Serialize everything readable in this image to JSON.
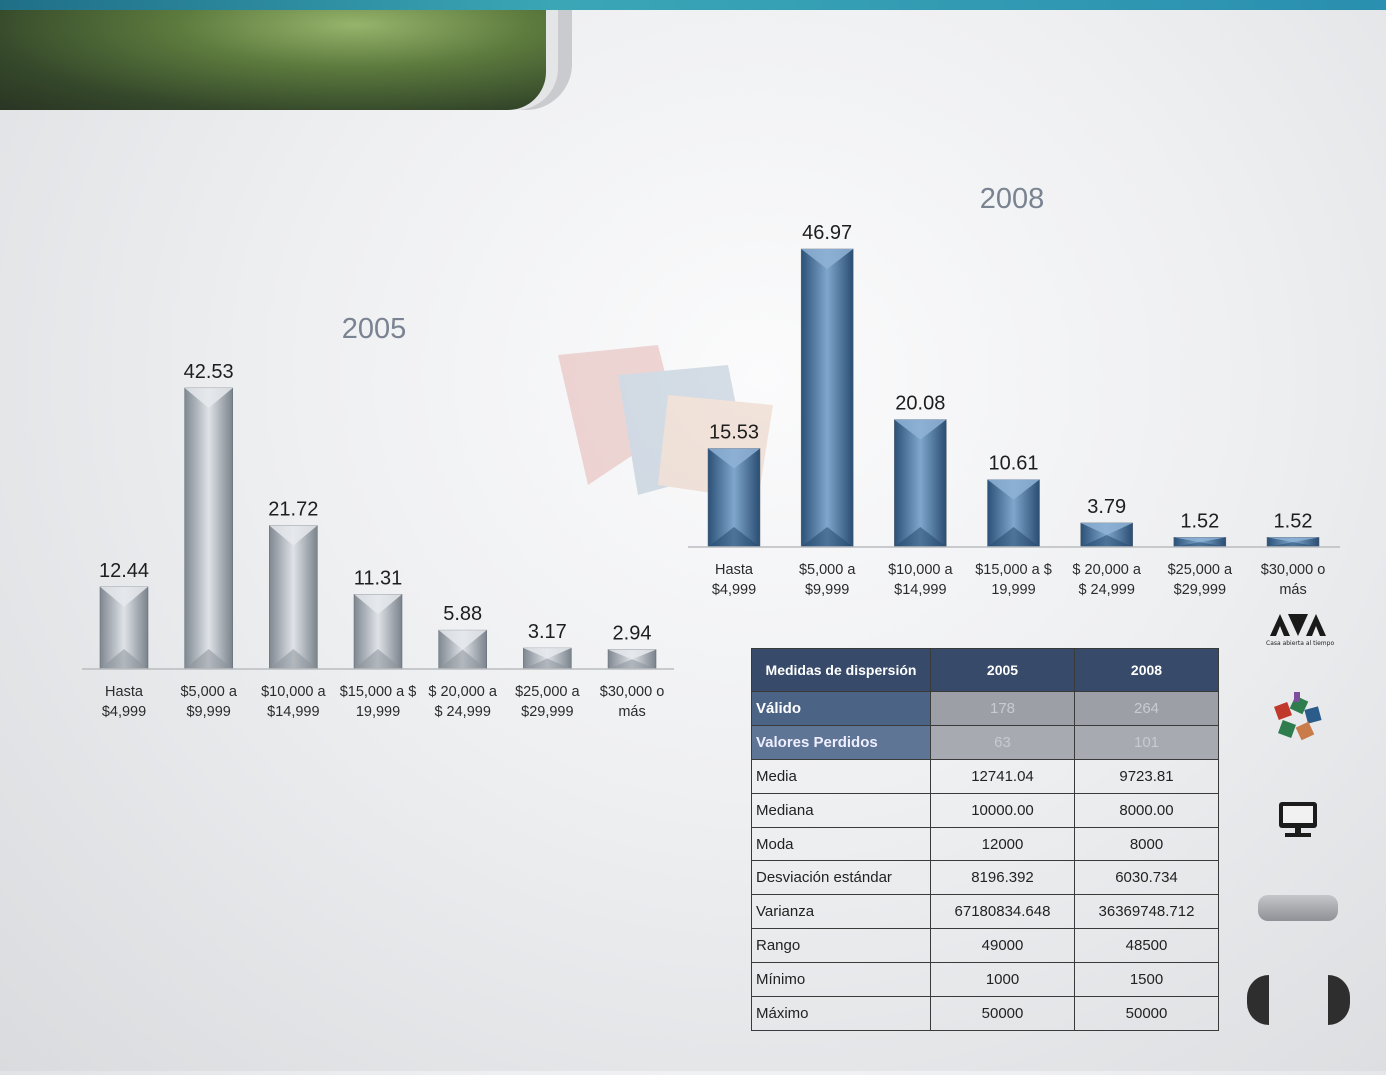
{
  "chart_data": [
    {
      "type": "bar",
      "title": "2005",
      "categories": [
        "Hasta\n$4,999",
        "$5,000 a\n$9,999",
        "$10,000 a\n$14,999",
        "$15,000 a $\n19,999",
        "$ 20,000 a\n$ 24,999",
        "$25,000 a\n$29,999",
        "$30,000 o\nmás"
      ],
      "values": [
        12.44,
        42.53,
        21.72,
        11.31,
        5.88,
        3.17,
        2.94
      ],
      "value_labels": [
        "12.44",
        "42.53",
        "21.72",
        "11.31",
        "5.88",
        "3.17",
        "2.94"
      ],
      "color": "#b3bac3",
      "ylim": [
        0,
        45
      ],
      "grid": false,
      "legend": "none"
    },
    {
      "type": "bar",
      "title": "2008",
      "categories": [
        "Hasta\n$4,999",
        "$5,000 a\n$9,999",
        "$10,000 a\n$14,999",
        "$15,000 a $\n19,999",
        "$ 20,000 a\n$ 24,999",
        "$25,000 a\n$29,999",
        "$30,000 o\nmás"
      ],
      "values": [
        15.53,
        46.97,
        20.08,
        10.61,
        3.79,
        1.52,
        1.52
      ],
      "value_labels": [
        "15.53",
        "46.97",
        "20.08",
        "10.61",
        "3.79",
        "1.52",
        "1.52"
      ],
      "color": "#4d7aa6",
      "ylim": [
        0,
        50
      ],
      "grid": false,
      "legend": "none"
    }
  ],
  "table": {
    "header": [
      "Medidas  de dispersión",
      "2005",
      "2008"
    ],
    "rows": [
      {
        "label": "Válido",
        "v2005": "178",
        "v2008": "264"
      },
      {
        "label": "Valores Perdidos",
        "v2005": "63",
        "v2008": "101"
      },
      {
        "label": "Media",
        "v2005": "12741.04",
        "v2008": "9723.81"
      },
      {
        "label": "Mediana",
        "v2005": "10000.00",
        "v2008": "8000.00"
      },
      {
        "label": "Moda",
        "v2005": "12000",
        "v2008": "8000"
      },
      {
        "label": "Desviación estándar",
        "v2005": "8196.392",
        "v2008": "6030.734"
      },
      {
        "label": "Varianza",
        "v2005": "67180834.648",
        "v2008": "36369748.712"
      },
      {
        "label": "Rango",
        "v2005": "49000",
        "v2008": "48500"
      },
      {
        "label": "Mínimo",
        "v2005": "1000",
        "v2008": "1500"
      },
      {
        "label": "Máximo",
        "v2005": "50000",
        "v2008": "50000"
      }
    ]
  },
  "sidebar": {
    "logo_text": "UAM",
    "logo_caption": "Casa abierta al tiempo",
    "icons": [
      "uam-logo",
      "colored-blocks-icon",
      "monitor-icon",
      "menu-button",
      "previous-button",
      "next-button"
    ]
  },
  "colors": {
    "header_tab": "#5d7b3e",
    "top_bar": "#2a8fb0",
    "table_header": "#374a6a"
  }
}
